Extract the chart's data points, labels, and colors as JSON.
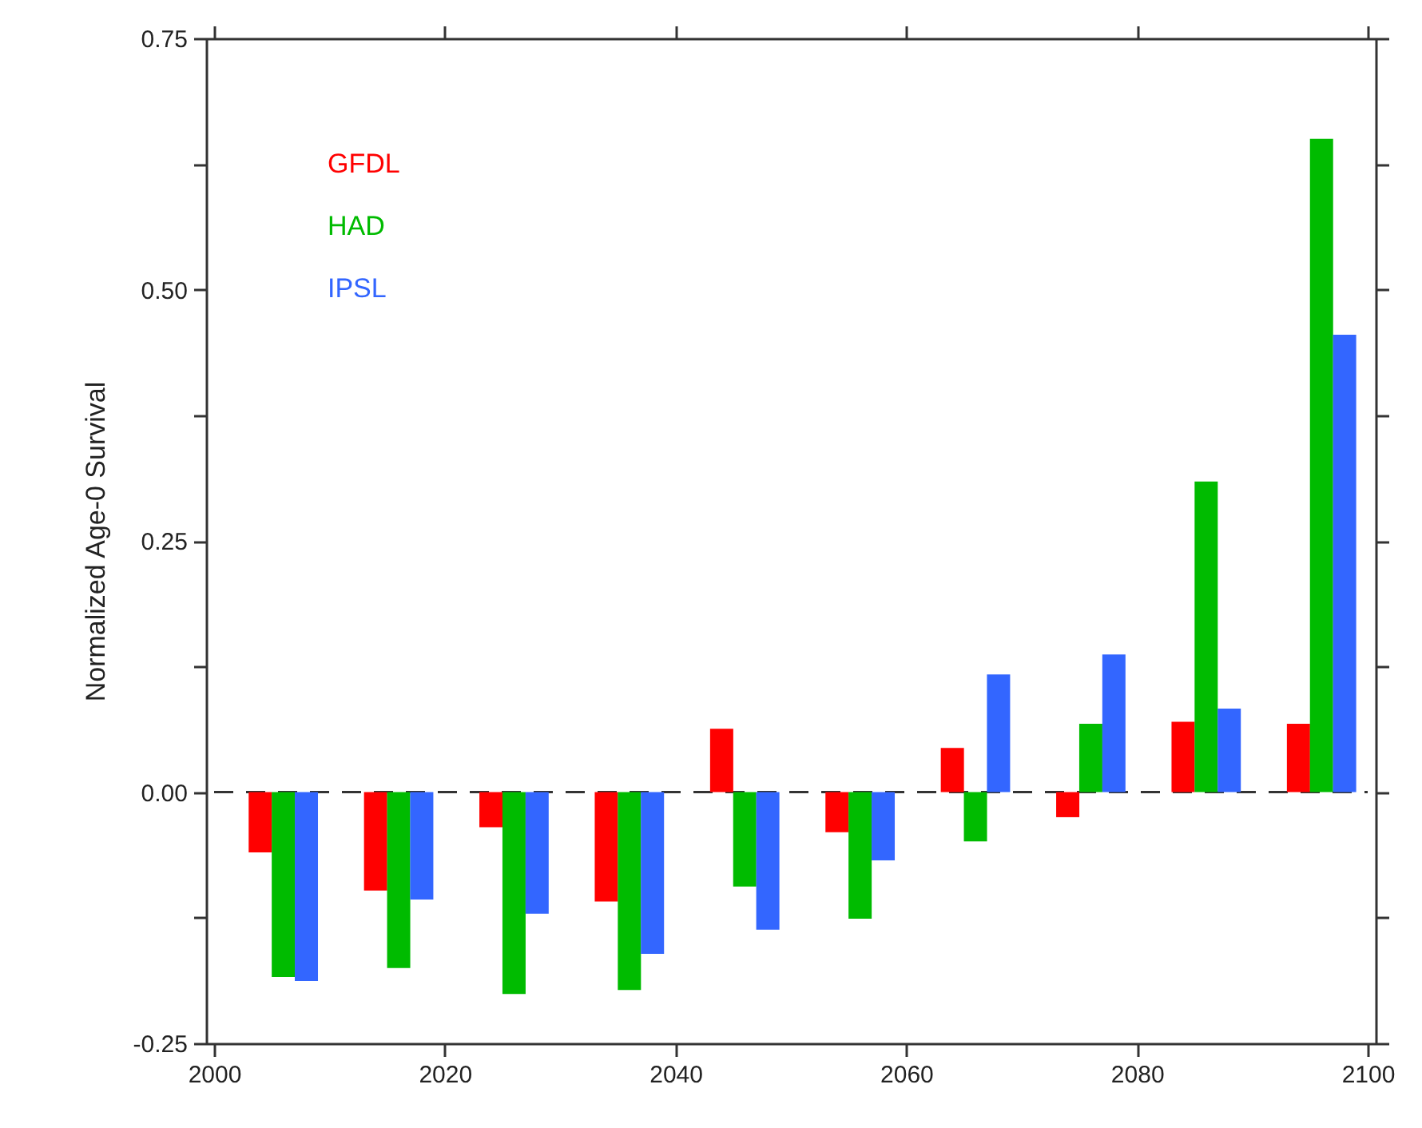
{
  "chart_data": {
    "type": "bar",
    "ylabel": "Normalized Age-0 Survival",
    "xlim": [
      2000,
      2100
    ],
    "xticks": [
      2000,
      2020,
      2040,
      2060,
      2080,
      2100
    ],
    "ylim": [
      -0.25,
      0.75
    ],
    "yticks": [
      -0.25,
      {
        "value": -0.125,
        "label": null
      },
      {
        "value": 0,
        "label": "0.00"
      },
      {
        "value": 0.125,
        "label": null
      },
      0.25,
      {
        "value": 0.375,
        "label": null
      },
      {
        "value": 0.5,
        "label": "0.50"
      },
      {
        "value": 0.625,
        "label": null
      },
      0.75
    ],
    "series": [
      {
        "name": "GFDL",
        "color": "#ff0000",
        "x": [
          2004,
          2014,
          2024,
          2034,
          2044,
          2054,
          2064,
          2074,
          2084,
          2094
        ],
        "values": [
          -0.06,
          -0.098,
          -0.035,
          -0.109,
          0.063,
          -0.04,
          0.044,
          -0.025,
          0.07,
          0.068
        ]
      },
      {
        "name": "HAD",
        "color": "#00bb00",
        "x": [
          2006,
          2016,
          2026,
          2036,
          2046,
          2056,
          2066,
          2076,
          2086,
          2096
        ],
        "values": [
          -0.184,
          -0.175,
          -0.201,
          -0.197,
          -0.094,
          -0.126,
          -0.049,
          0.068,
          0.309,
          0.65
        ]
      },
      {
        "name": "IPSL",
        "color": "#3366ff",
        "x": [
          2008,
          2018,
          2028,
          2038,
          2048,
          2058,
          2068,
          2078,
          2088,
          2098
        ],
        "values": [
          -0.188,
          -0.107,
          -0.121,
          -0.161,
          -0.137,
          -0.068,
          0.117,
          0.137,
          0.083,
          0.455
        ]
      }
    ],
    "ref_lines": [
      {
        "axis": "y",
        "value": 0,
        "color": "#333333",
        "line_style": "dashed"
      }
    ],
    "grid": false
  }
}
